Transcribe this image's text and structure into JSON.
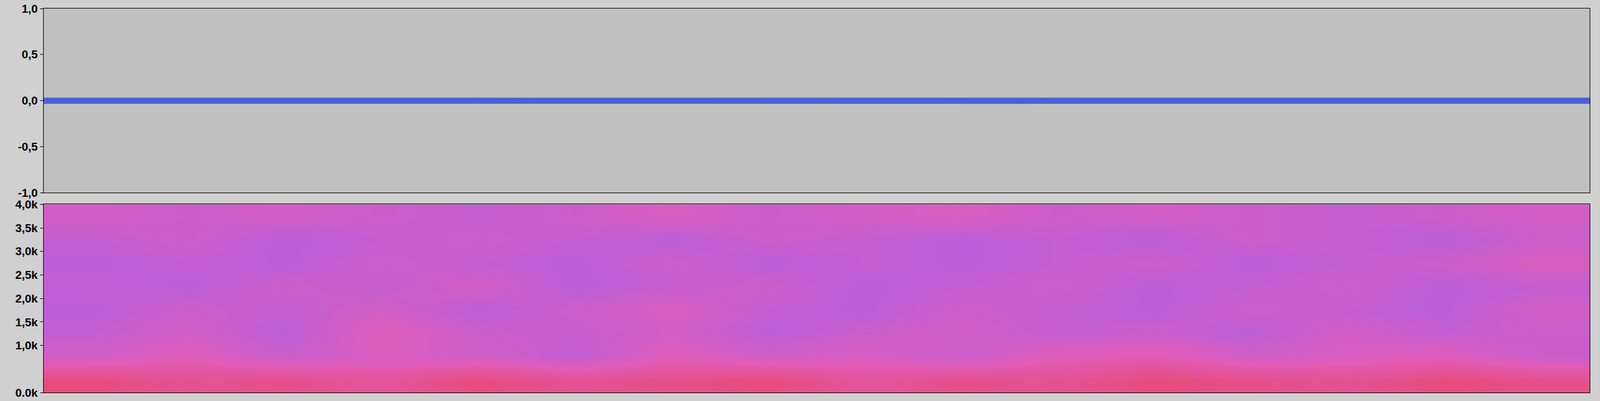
{
  "chart_data": [
    {
      "type": "area",
      "x": [
        0,
        1,
        2,
        3,
        4,
        5,
        6,
        7,
        8,
        9,
        10,
        11,
        12,
        13,
        14,
        15,
        16,
        17,
        18,
        19
      ],
      "series": [
        {
          "color": "#4a62d8",
          "values": [
            0.03,
            0.031,
            0.028,
            0.03,
            0.032,
            0.03,
            0.029,
            0.03,
            0.031,
            0.03,
            0.03,
            0.029,
            0.03,
            0.03,
            0.028,
            0.03,
            0.03,
            0.031,
            0.03,
            0.03
          ]
        },
        {
          "color": "#4a62d8",
          "values": [
            -0.03,
            -0.031,
            -0.03,
            -0.029,
            -0.032,
            -0.03,
            -0.03,
            -0.031,
            -0.03,
            -0.029,
            -0.03,
            -0.03,
            -0.031,
            -0.03,
            -0.03,
            -0.029,
            -0.03,
            -0.031,
            -0.03,
            -0.03
          ]
        }
      ],
      "xlim": [
        0,
        19
      ],
      "ylim": [
        -1,
        1
      ],
      "yticks": [
        {
          "value": 1,
          "label": "1,0"
        },
        {
          "value": 0.5,
          "label": "0,5"
        },
        {
          "value": 0,
          "label": "0,0"
        },
        {
          "value": -0.5,
          "label": "-0,5"
        },
        {
          "value": -1,
          "label": "-1,0"
        }
      ],
      "tick_labels": "y",
      "grid": false
    },
    {
      "type": "heatmap",
      "x": [
        0,
        1,
        2,
        3,
        4,
        5,
        6,
        7,
        8,
        9,
        10,
        11,
        12,
        13,
        14,
        15
      ],
      "y": [
        250,
        750,
        1250,
        1750,
        2250,
        2750,
        3250,
        3750
      ],
      "cells": [
        [
          -44,
          -46,
          -45,
          -47,
          -44,
          -46,
          -45,
          -44,
          -47,
          -45,
          -46,
          -44,
          -45,
          -46,
          -44,
          -45
        ],
        [
          -52,
          -50,
          -53,
          -51,
          -52,
          -54,
          -50,
          -52,
          -51,
          -53,
          -50,
          -49,
          -52,
          -51,
          -50,
          -53
        ],
        [
          -54,
          -52,
          -55,
          -50,
          -53,
          -54,
          -52,
          -55,
          -53,
          -52,
          -54,
          -53,
          -55,
          -52,
          -54,
          -53
        ],
        [
          -55,
          -53,
          -54,
          -52,
          -55,
          -53,
          -51,
          -54,
          -55,
          -53,
          -54,
          -55,
          -53,
          -54,
          -55,
          -52
        ],
        [
          -54,
          -55,
          -53,
          -54,
          -52,
          -55,
          -54,
          -53,
          -55,
          -54,
          -53,
          -55,
          -54,
          -53,
          -55,
          -54
        ],
        [
          -55,
          -54,
          -55,
          -53,
          -54,
          -55,
          -53,
          -55,
          -54,
          -55,
          -54,
          -53,
          -55,
          -54,
          -53,
          -51
        ],
        [
          -54,
          -53,
          -55,
          -54,
          -53,
          -54,
          -55,
          -53,
          -54,
          -55,
          -54,
          -55,
          -53,
          -54,
          -55,
          -53
        ],
        [
          -52,
          -53,
          -52,
          -53,
          -54,
          -53,
          -51,
          -53,
          -52,
          -51,
          -53,
          -52,
          -53,
          -54,
          -53,
          -52
        ]
      ],
      "zlim": [
        -65,
        -40
      ],
      "xlim": [
        -0.5,
        15.5
      ],
      "ylim": [
        0,
        4000
      ],
      "yticks": [
        {
          "value": 4000,
          "label": "4,0k"
        },
        {
          "value": 3500,
          "label": "3,5k"
        },
        {
          "value": 3000,
          "label": "3,0k"
        },
        {
          "value": 2500,
          "label": "2,5k"
        },
        {
          "value": 2000,
          "label": "2,0k"
        },
        {
          "value": 1500,
          "label": "1,5k"
        },
        {
          "value": 1000,
          "label": "1,0k"
        },
        {
          "value": 0,
          "label": "0.0k"
        }
      ],
      "tick_labels": "y",
      "grid": false
    }
  ]
}
